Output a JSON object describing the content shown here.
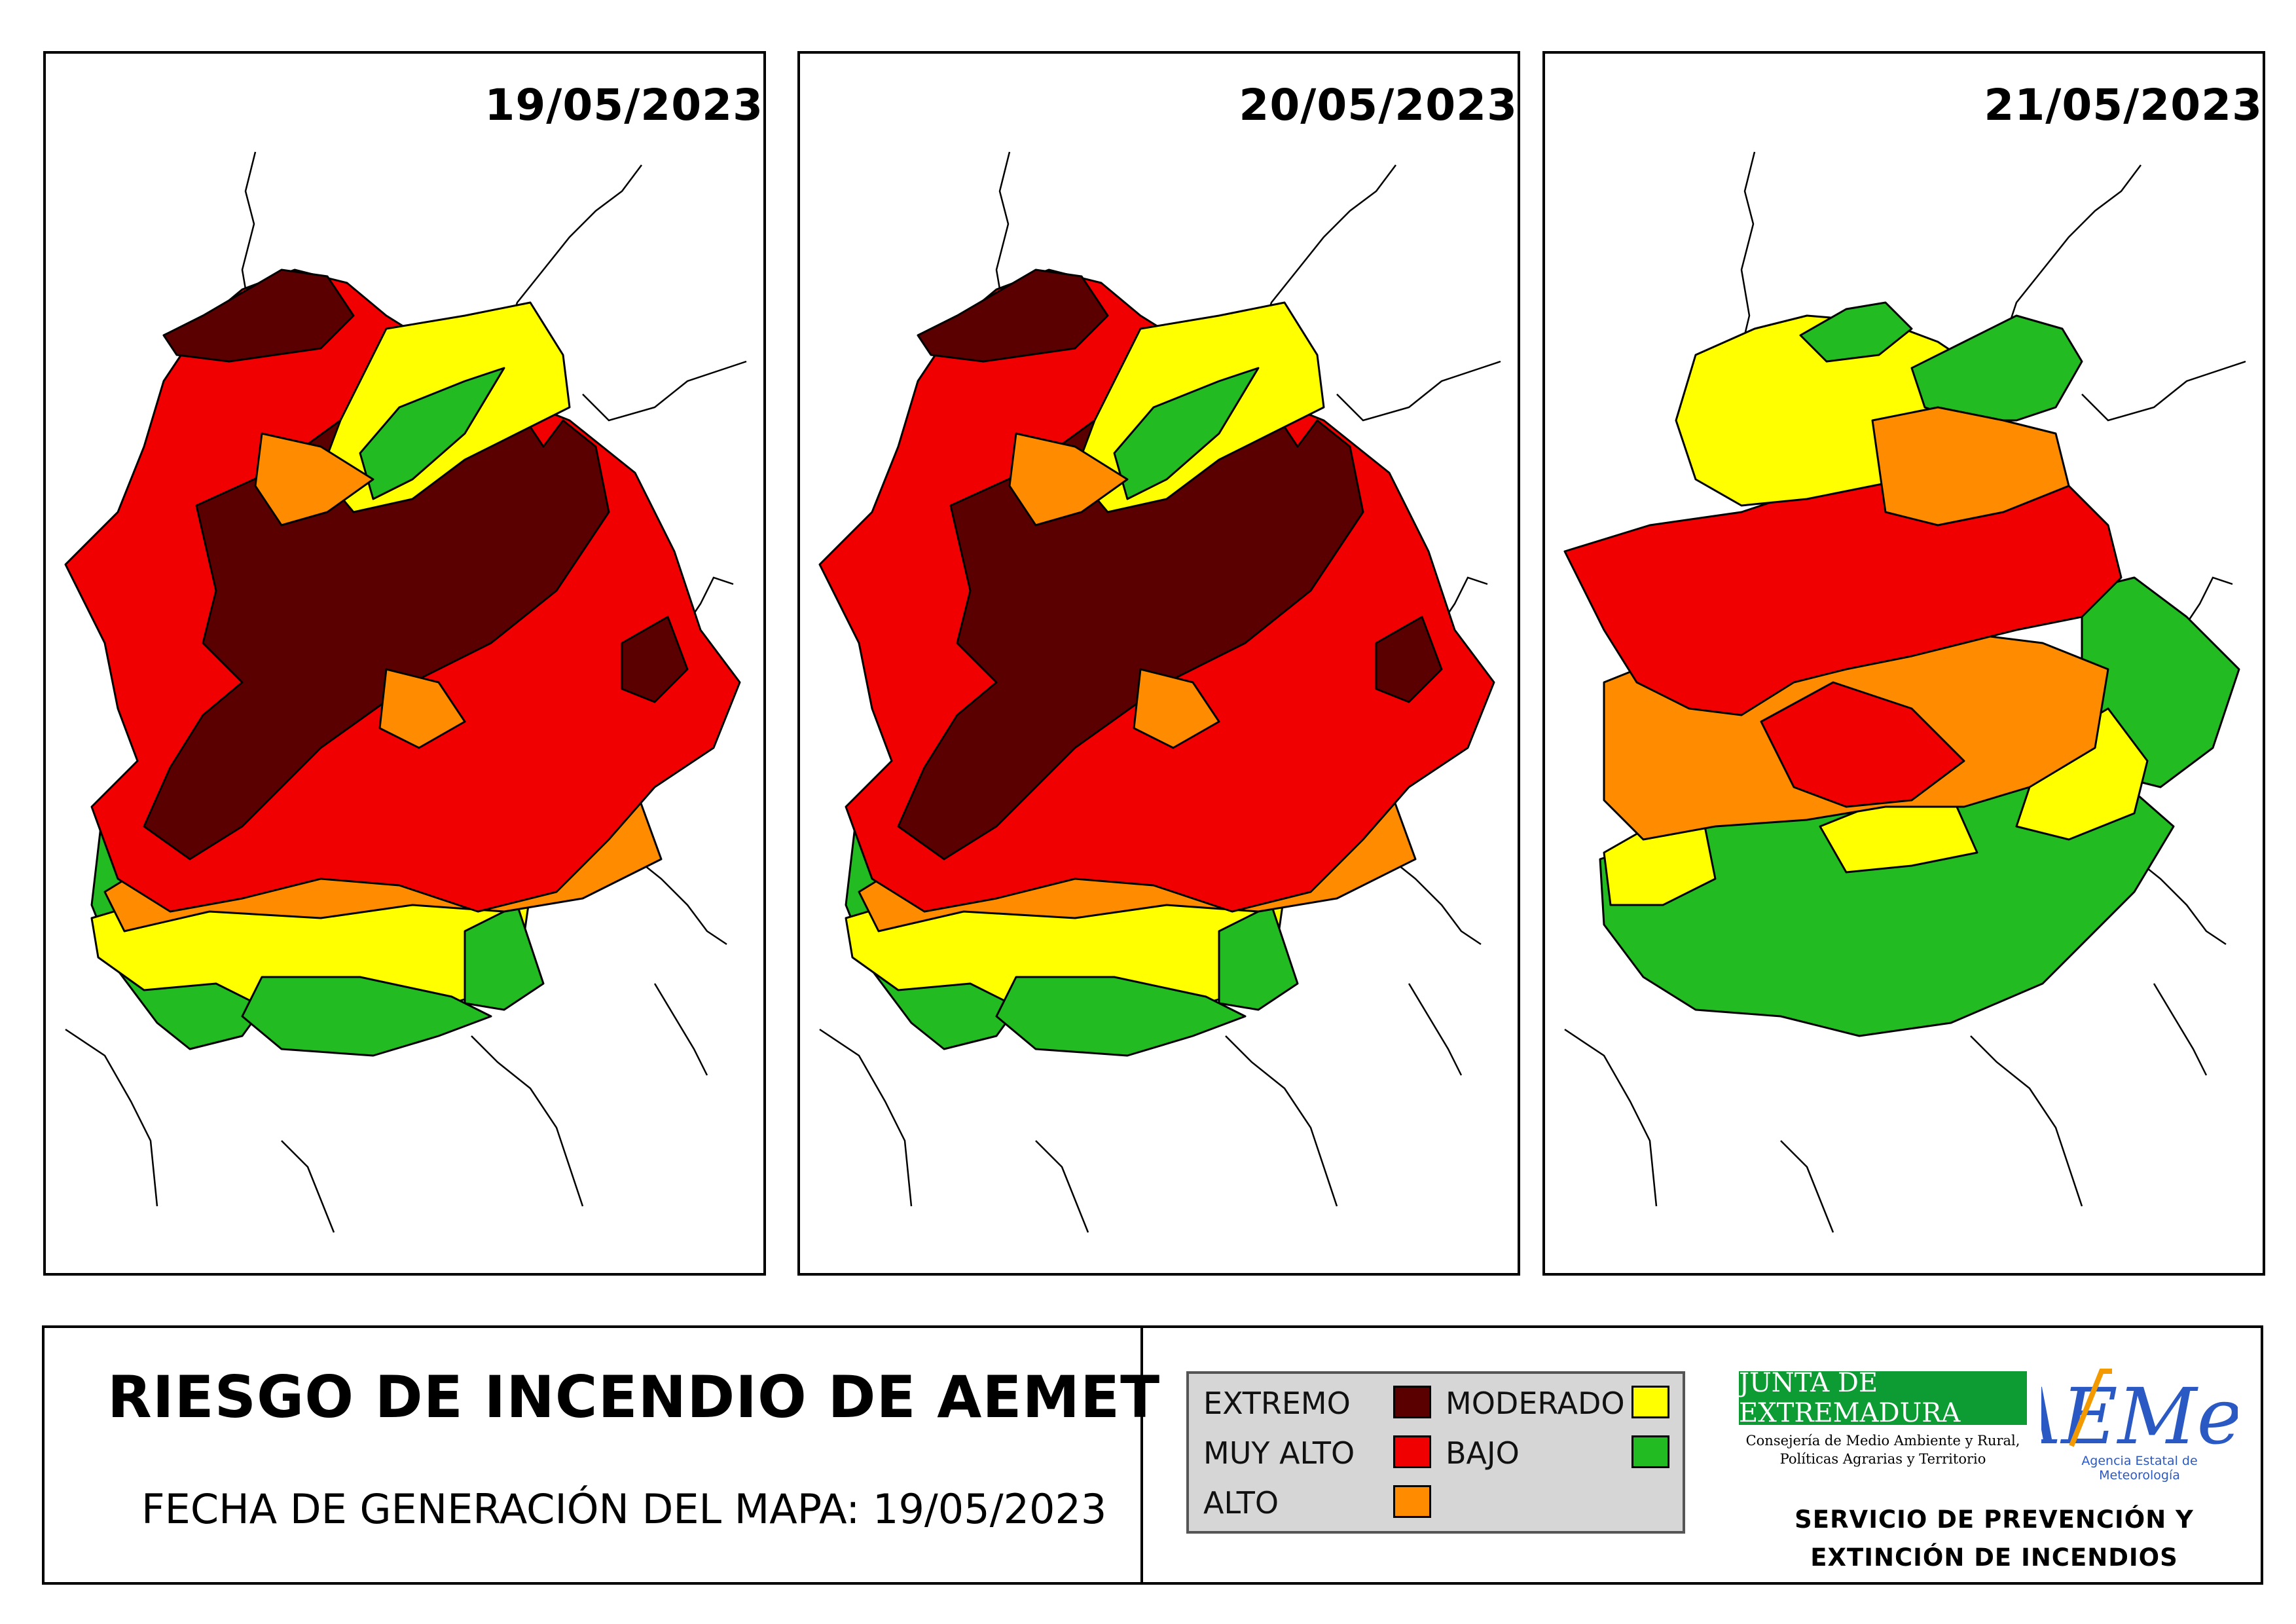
{
  "maps": [
    {
      "date": "19/05/2023"
    },
    {
      "date": "20/05/2023"
    },
    {
      "date": "21/05/2023"
    }
  ],
  "footer": {
    "title": "RIESGO DE INCENDIO DE AEMET",
    "generation_date": "FECHA DE GENERACIÓN DEL MAPA: 19/05/2023",
    "service_line1": "SERVICIO DE PREVENCIÓN Y",
    "service_line2": "EXTINCIÓN DE INCENDIOS"
  },
  "legend": {
    "extremo": {
      "label": "EXTREMO",
      "color": "#5a0000"
    },
    "muy_alto": {
      "label": "MUY ALTO",
      "color": "#f00000"
    },
    "alto": {
      "label": "ALTO",
      "color": "#ff8c00"
    },
    "moderado": {
      "label": "MODERADO",
      "color": "#ffff00"
    },
    "bajo": {
      "label": "BAJO",
      "color": "#22bb22"
    }
  },
  "logos": {
    "junta_name": "JUNTA DE EXTREMADURA",
    "junta_subtitle_line1": "Consejería de Medio Ambiente y Rural,",
    "junta_subtitle_line2": "Políticas Agrarias y Territorio",
    "aemet_name": "AEMet",
    "aemet_subtitle": "Agencia Estatal de Meteorología"
  }
}
